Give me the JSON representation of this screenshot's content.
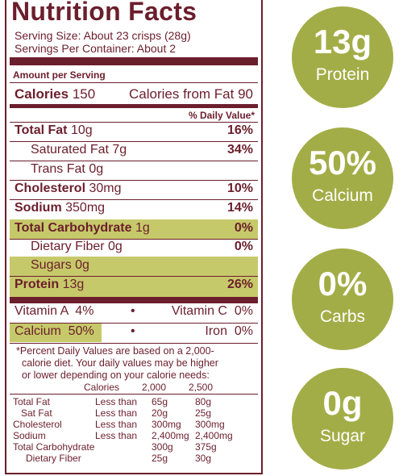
{
  "label": {
    "title": "Nutrition Facts",
    "serving_size": "Serving Size: About 23 crisps (28g)",
    "servings_per_container": "Servings Per Container: About 2",
    "amount_per_serving": "Amount per Serving",
    "calories": {
      "label": "Calories",
      "value": "150",
      "from_fat": "Calories from Fat 90"
    },
    "daily_value_header": "% Daily Value*",
    "rows": {
      "total_fat": {
        "label": "Total Fat",
        "value": "10g",
        "dv": "16%"
      },
      "saturated_fat": {
        "label": "Saturated Fat 7g",
        "dv": "34%"
      },
      "trans_fat": {
        "label": "Trans Fat 0g"
      },
      "cholesterol": {
        "label": "Cholesterol",
        "value": "30mg",
        "dv": "10%"
      },
      "sodium": {
        "label": "Sodium",
        "value": "350mg",
        "dv": "14%"
      },
      "total_carb": {
        "label": "Total Carbohydrate",
        "value": "1g",
        "dv": "0%"
      },
      "fiber": {
        "label": "Dietary Fiber 0g",
        "dv": "0%"
      },
      "sugars": {
        "label": "Sugars 0g"
      },
      "protein": {
        "label": "Protein",
        "value": "13g",
        "dv": "26%"
      }
    },
    "vitamins": {
      "vitamin_a": "Vitamin A  4%",
      "vitamin_c": "Vitamin C  0%",
      "calcium": "Calcium  50%",
      "iron": "Iron  0%",
      "bullet": "•"
    },
    "footnote": [
      "*Percent Daily Values are based on a 2,000-",
      "calorie diet. Your daily values may be higher",
      "or lower depending on your calorie needs:"
    ],
    "dv_table": {
      "header": [
        "Calories",
        "2,000",
        "2,500"
      ],
      "rows": [
        [
          "Total Fat",
          "Less than",
          "65g",
          "80g"
        ],
        [
          "Sat Fat",
          "Less than",
          "20g",
          "25g"
        ],
        [
          "Cholesterol",
          "Less than",
          "300mg",
          "300mg"
        ],
        [
          "Sodium",
          "Less than",
          "2,400mg",
          "2,400mg"
        ],
        [
          "Total Carbohydrate",
          "",
          "300g",
          "375g"
        ],
        [
          "Dietary Fiber",
          "",
          "25g",
          "30g"
        ]
      ]
    }
  },
  "badges": [
    {
      "value": "13g",
      "label": "Protein"
    },
    {
      "value": "50%",
      "label": "Calcium"
    },
    {
      "value": "0%",
      "label": "Carbs"
    },
    {
      "value": "0g",
      "label": "Sugar"
    }
  ],
  "colors": {
    "text": "#6b1e2c",
    "highlight": "#c6c96a",
    "badge": "#a3ad47"
  }
}
